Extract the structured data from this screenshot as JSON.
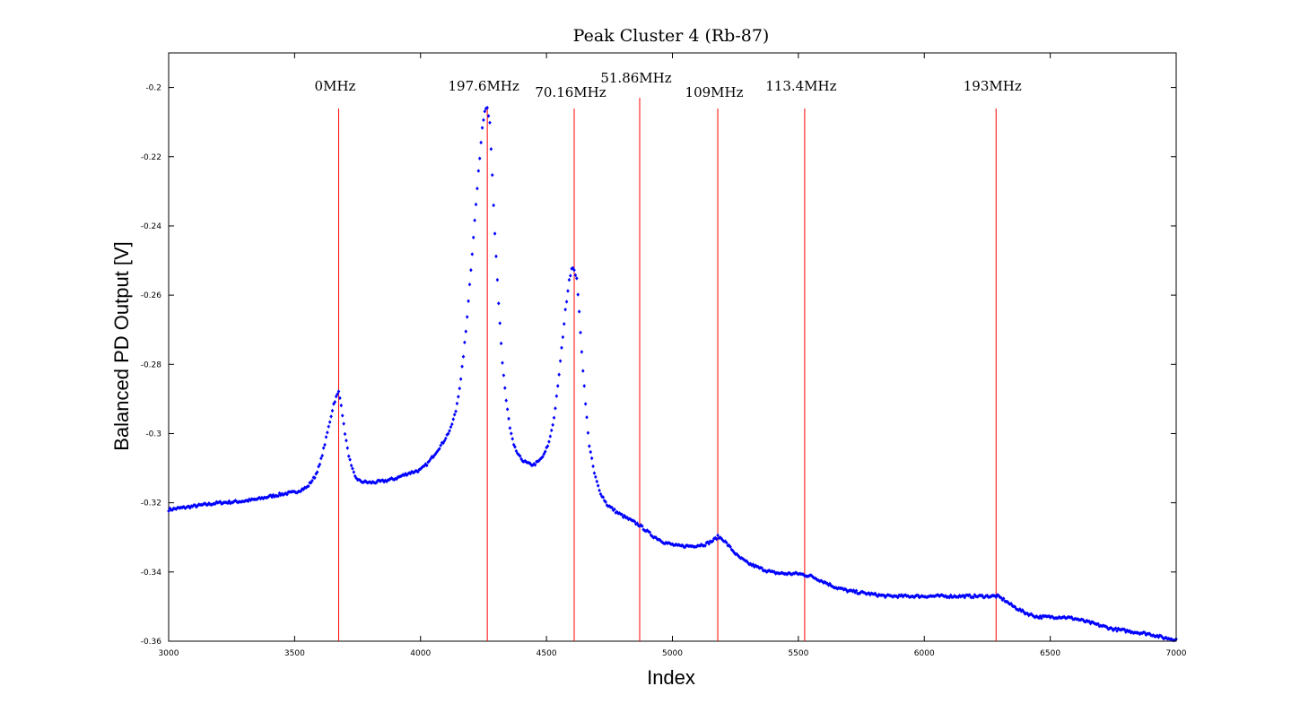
{
  "chart_data": {
    "type": "scatter",
    "title": "Peak Cluster 4 (Rb-87)",
    "xlabel": "Index",
    "ylabel": "Balanced PD Output [V]",
    "xlim": [
      3000,
      7000
    ],
    "ylim": [
      -0.36,
      -0.19
    ],
    "xticks": [
      3000,
      3500,
      4000,
      4500,
      5000,
      5500,
      6000,
      6500,
      7000
    ],
    "xtick_labels": [
      "3000",
      "3500",
      "4000",
      "4500",
      "5000",
      "5500",
      "6000",
      "6500",
      "7000"
    ],
    "yticks": [
      -0.36,
      -0.34,
      -0.32,
      -0.3,
      -0.28,
      -0.26,
      -0.24,
      -0.22,
      -0.2
    ],
    "ytick_labels": [
      "-0.36",
      "-0.34",
      "-0.32",
      "-0.3",
      "-0.28",
      "-0.26",
      "-0.24",
      "-0.22",
      "-0.2"
    ],
    "grid": false,
    "series_color": "#0000ff",
    "marker_line_color": "#ff0000",
    "series": [
      {
        "x": [
          3000,
          3050,
          3100,
          3150,
          3200,
          3250,
          3300,
          3350,
          3400,
          3450,
          3500,
          3550,
          3580,
          3600,
          3620,
          3640,
          3655,
          3665,
          3675,
          3685,
          3695,
          3710,
          3725,
          3740,
          3760,
          3800,
          3850,
          3900,
          3950,
          4000,
          4030,
          4060,
          4090,
          4120,
          4140,
          4160,
          4180,
          4200,
          4215,
          4230,
          4245,
          4255,
          4265,
          4275,
          4285,
          4295,
          4310,
          4325,
          4340,
          4355,
          4370,
          4390,
          4410,
          4430,
          4450,
          4470,
          4490,
          4510,
          4530,
          4545,
          4560,
          4575,
          4590,
          4600,
          4610,
          4620,
          4630,
          4640,
          4655,
          4670,
          4690,
          4710,
          4740,
          4780,
          4820,
          4870,
          4920,
          4970,
          5020,
          5080,
          5130,
          5160,
          5180,
          5200,
          5230,
          5260,
          5300,
          5350,
          5400,
          5450,
          5500,
          5550,
          5600,
          5650,
          5700,
          5750,
          5800,
          5850,
          5900,
          5950,
          6000,
          6050,
          6100,
          6150,
          6200,
          6250,
          6290,
          6320,
          6350,
          6400,
          6450,
          6500,
          6550,
          6600,
          6650,
          6700,
          6750,
          6800,
          6850,
          6900,
          6950,
          7000
        ],
        "y": [
          -0.322,
          -0.3215,
          -0.321,
          -0.3205,
          -0.32,
          -0.3198,
          -0.3195,
          -0.319,
          -0.3182,
          -0.3175,
          -0.317,
          -0.3155,
          -0.3125,
          -0.309,
          -0.303,
          -0.2965,
          -0.2915,
          -0.2895,
          -0.288,
          -0.2915,
          -0.2975,
          -0.3045,
          -0.3095,
          -0.3125,
          -0.3138,
          -0.3142,
          -0.3138,
          -0.313,
          -0.3115,
          -0.3105,
          -0.3085,
          -0.3055,
          -0.3025,
          -0.2985,
          -0.2935,
          -0.2845,
          -0.2705,
          -0.2525,
          -0.2385,
          -0.2245,
          -0.2115,
          -0.2065,
          -0.2055,
          -0.2105,
          -0.2255,
          -0.2425,
          -0.2625,
          -0.2795,
          -0.2905,
          -0.2985,
          -0.3035,
          -0.3065,
          -0.308,
          -0.3088,
          -0.309,
          -0.308,
          -0.3062,
          -0.3025,
          -0.2955,
          -0.2865,
          -0.2755,
          -0.2645,
          -0.2555,
          -0.2525,
          -0.2525,
          -0.2555,
          -0.2645,
          -0.2765,
          -0.2915,
          -0.3035,
          -0.3115,
          -0.3165,
          -0.3205,
          -0.3228,
          -0.3245,
          -0.3265,
          -0.3295,
          -0.3315,
          -0.3325,
          -0.3325,
          -0.332,
          -0.331,
          -0.3298,
          -0.3305,
          -0.333,
          -0.3355,
          -0.3375,
          -0.339,
          -0.3402,
          -0.3405,
          -0.3405,
          -0.3412,
          -0.3428,
          -0.3445,
          -0.3455,
          -0.346,
          -0.3465,
          -0.347,
          -0.347,
          -0.347,
          -0.347,
          -0.347,
          -0.347,
          -0.347,
          -0.347,
          -0.347,
          -0.347,
          -0.3482,
          -0.3498,
          -0.3518,
          -0.353,
          -0.353,
          -0.353,
          -0.3535,
          -0.3545,
          -0.3555,
          -0.3565,
          -0.357,
          -0.3575,
          -0.358,
          -0.359,
          -0.3595
        ]
      }
    ],
    "markers": [
      {
        "x": 3675,
        "label": "0MHz"
      },
      {
        "x": 4265,
        "label": "197.6MHz"
      },
      {
        "x": 4610,
        "label": "70.16MHz"
      },
      {
        "x": 4870,
        "label": "51.86MHz"
      },
      {
        "x": 5180,
        "label": "109MHz"
      },
      {
        "x": 5525,
        "label": "113.4MHz"
      },
      {
        "x": 6285,
        "label": "193MHz"
      }
    ]
  }
}
